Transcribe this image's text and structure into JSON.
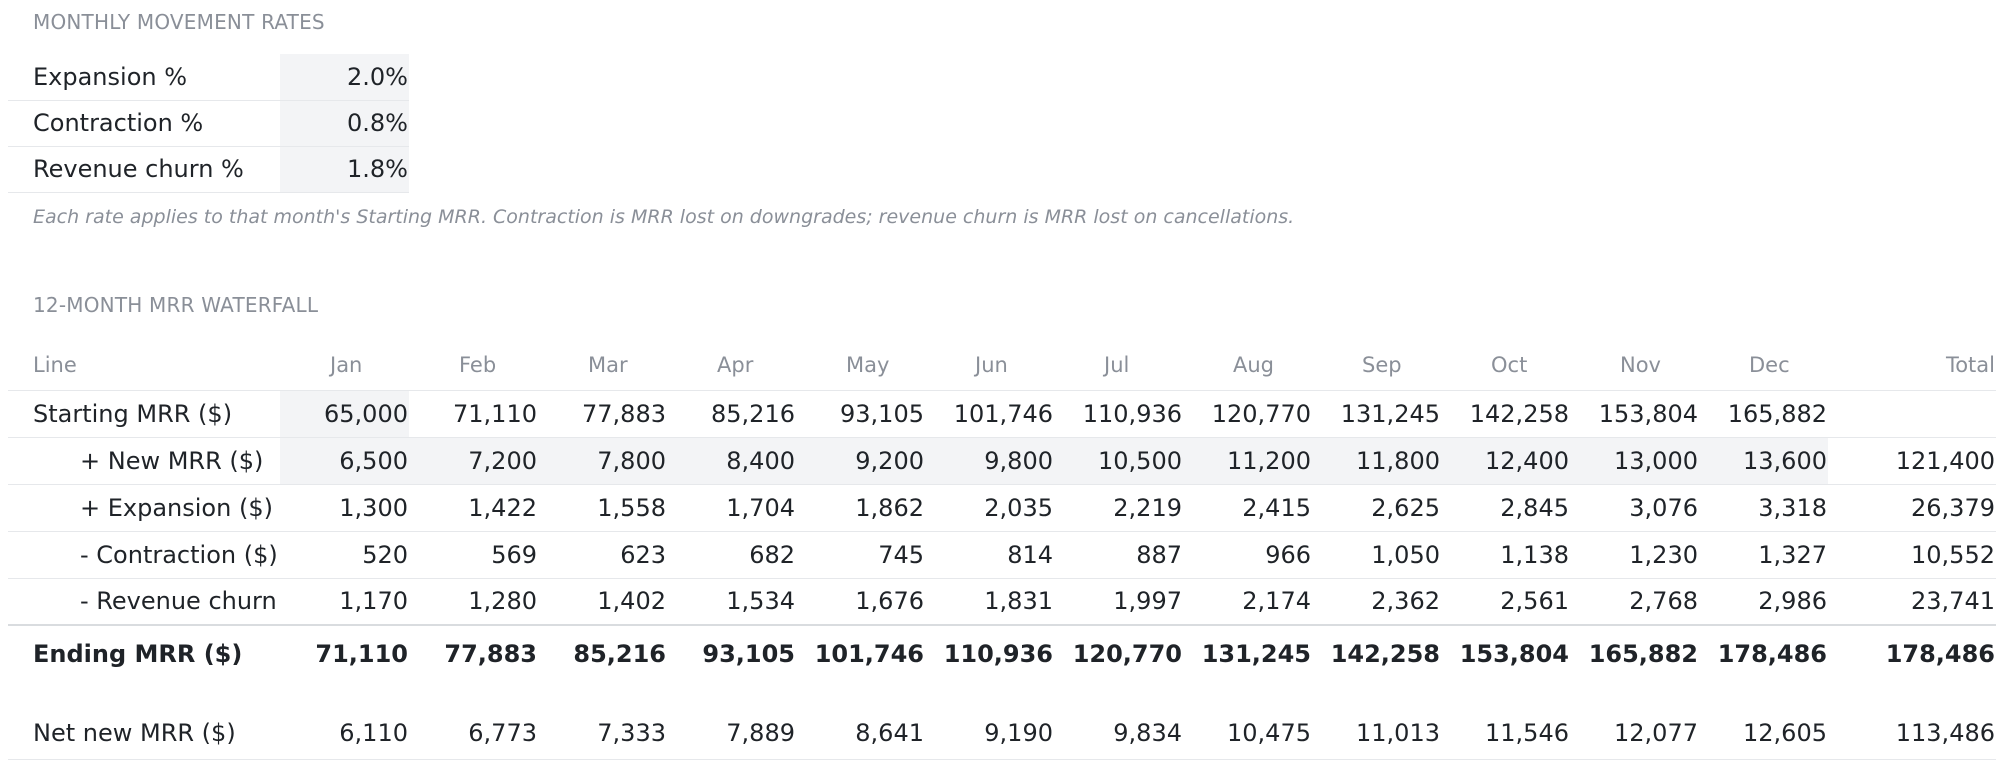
{
  "rates_section": {
    "title": "MONTHLY MOVEMENT RATES",
    "rows": [
      {
        "label": "Expansion %",
        "value": "2.0%"
      },
      {
        "label": "Contraction %",
        "value": "0.8%"
      },
      {
        "label": "Revenue churn %",
        "value": "1.8%"
      }
    ],
    "note": "Each rate applies to that month's Starting MRR. Contraction is MRR lost on downgrades; revenue churn is MRR lost on cancellations."
  },
  "waterfall": {
    "title": "12-MONTH MRR WATERFALL",
    "headers": [
      "Line",
      "Jan",
      "Feb",
      "Mar",
      "Apr",
      "May",
      "Jun",
      "Jul",
      "Aug",
      "Sep",
      "Oct",
      "Nov",
      "Dec",
      "Total"
    ],
    "rows": {
      "starting": {
        "label": "Starting MRR ($)",
        "values": [
          "65,000",
          "71,110",
          "77,883",
          "85,216",
          "93,105",
          "101,746",
          "110,936",
          "120,770",
          "131,245",
          "142,258",
          "153,804",
          "165,882"
        ],
        "total": ""
      },
      "new": {
        "label": "+ New MRR ($)",
        "values": [
          "6,500",
          "7,200",
          "7,800",
          "8,400",
          "9,200",
          "9,800",
          "10,500",
          "11,200",
          "11,800",
          "12,400",
          "13,000",
          "13,600"
        ],
        "total": "121,400"
      },
      "expansion": {
        "label": "+ Expansion ($)",
        "values": [
          "1,300",
          "1,422",
          "1,558",
          "1,704",
          "1,862",
          "2,035",
          "2,219",
          "2,415",
          "2,625",
          "2,845",
          "3,076",
          "3,318"
        ],
        "total": "26,379"
      },
      "contraction": {
        "label": "- Contraction ($)",
        "values": [
          "520",
          "569",
          "623",
          "682",
          "745",
          "814",
          "887",
          "966",
          "1,050",
          "1,138",
          "1,230",
          "1,327"
        ],
        "total": "10,552"
      },
      "churn": {
        "label": "- Revenue churn",
        "values": [
          "1,170",
          "1,280",
          "1,402",
          "1,534",
          "1,676",
          "1,831",
          "1,997",
          "2,174",
          "2,362",
          "2,561",
          "2,768",
          "2,986"
        ],
        "total": "23,741"
      },
      "ending": {
        "label": "Ending MRR ($)",
        "values": [
          "71,110",
          "77,883",
          "85,216",
          "93,105",
          "101,746",
          "110,936",
          "120,770",
          "131,245",
          "142,258",
          "153,804",
          "165,882",
          "178,486"
        ],
        "total": "178,486"
      },
      "net": {
        "label": "Net new MRR ($)",
        "values": [
          "6,110",
          "6,773",
          "7,333",
          "7,889",
          "8,641",
          "9,190",
          "9,834",
          "10,475",
          "11,013",
          "11,546",
          "12,077",
          "12,605"
        ],
        "total": "113,486"
      }
    }
  }
}
